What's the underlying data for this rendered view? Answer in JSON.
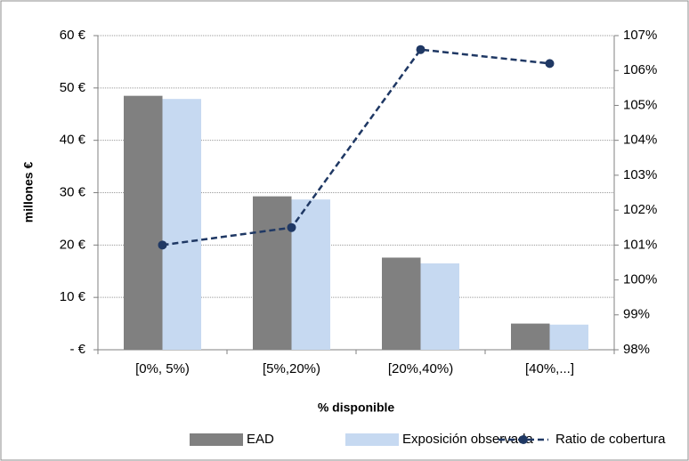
{
  "chart_data": {
    "type": "bar",
    "x_label": "% disponible",
    "y_label": "millones €",
    "categories": [
      "[0%, 5%)",
      "[5%,20%)",
      "[20%,40%)",
      "[40%,...]"
    ],
    "series": [
      {
        "name": "EAD",
        "color": "#808080",
        "type": "bar",
        "values": [
          48.5,
          29.3,
          17.6,
          5.0
        ]
      },
      {
        "name": "Exposición observada",
        "color": "#c6d9f1",
        "type": "bar",
        "values": [
          47.9,
          28.7,
          16.5,
          4.8
        ]
      },
      {
        "name": "Ratio de cobertura",
        "color": "#1f3864",
        "type": "line",
        "axis": "y2",
        "values": [
          101.0,
          101.5,
          106.6,
          106.2
        ]
      }
    ],
    "ylim": [
      0,
      60
    ],
    "yticks": [
      {
        "value": 0,
        "label": "-  €"
      },
      {
        "value": 10,
        "label": "10 €"
      },
      {
        "value": 20,
        "label": "20 €"
      },
      {
        "value": 30,
        "label": "30 €"
      },
      {
        "value": 40,
        "label": "40 €"
      },
      {
        "value": 50,
        "label": "50 €"
      },
      {
        "value": 60,
        "label": "60 €"
      }
    ],
    "y2lim": [
      98,
      107
    ],
    "y2ticks": [
      {
        "value": 98,
        "label": "98%"
      },
      {
        "value": 99,
        "label": "99%"
      },
      {
        "value": 100,
        "label": "100%"
      },
      {
        "value": 101,
        "label": "101%"
      },
      {
        "value": 102,
        "label": "102%"
      },
      {
        "value": 103,
        "label": "103%"
      },
      {
        "value": 104,
        "label": "104%"
      },
      {
        "value": 105,
        "label": "105%"
      },
      {
        "value": 106,
        "label": "106%"
      },
      {
        "value": 107,
        "label": "107%"
      }
    ],
    "grid": true,
    "legend": "bottom"
  }
}
